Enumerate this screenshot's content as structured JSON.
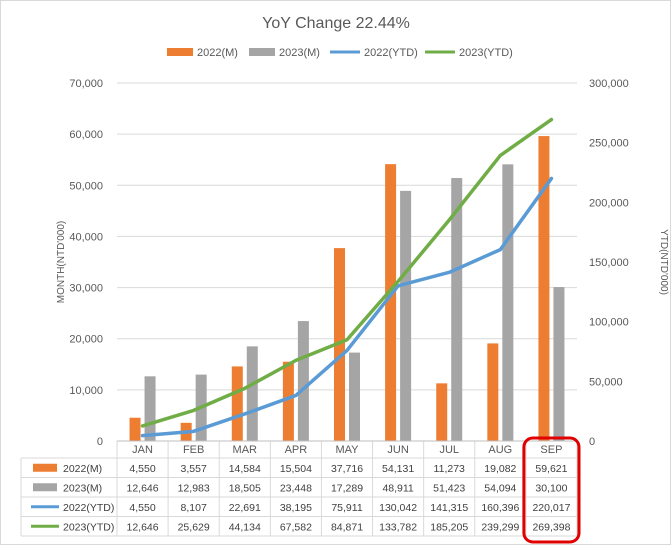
{
  "chart_data": {
    "type": "bar",
    "title": "YoY Change 22.44%",
    "categories": [
      "JAN",
      "FEB",
      "MAR",
      "APR",
      "MAY",
      "JUN",
      "JUL",
      "AUG",
      "SEP"
    ],
    "ylabel": "MONTH(NTD'000)",
    "y2label": "YTD(NTD'000)",
    "ylim": [
      0,
      70000
    ],
    "y2lim": [
      0,
      300000
    ],
    "yticks": [
      "0",
      "10,000",
      "20,000",
      "30,000",
      "40,000",
      "50,000",
      "60,000",
      "70,000"
    ],
    "y2ticks": [
      "0",
      "50,000",
      "100,000",
      "150,000",
      "200,000",
      "250,000",
      "300,000"
    ],
    "legend_position": "top",
    "grid": true,
    "series": [
      {
        "name": "2022(M)",
        "type": "bar",
        "axis": "left",
        "color": "#ED7D31",
        "values": [
          4550,
          3557,
          14584,
          15504,
          37716,
          54131,
          11273,
          19082,
          59621
        ],
        "labels": [
          "4,550",
          "3,557",
          "14,584",
          "15,504",
          "37,716",
          "54,131",
          "11,273",
          "19,082",
          "59,621"
        ]
      },
      {
        "name": "2023(M)",
        "type": "bar",
        "axis": "left",
        "color": "#A5A5A5",
        "values": [
          12646,
          12983,
          18505,
          23448,
          17289,
          48911,
          51423,
          54094,
          30100
        ],
        "labels": [
          "12,646",
          "12,983",
          "18,505",
          "23,448",
          "17,289",
          "48,911",
          "51,423",
          "54,094",
          "30,100"
        ]
      },
      {
        "name": "2022(YTD)",
        "type": "line",
        "axis": "right",
        "color": "#5B9BD5",
        "values": [
          4550,
          8107,
          22691,
          38195,
          75911,
          130042,
          141315,
          160396,
          220017
        ],
        "labels": [
          "4,550",
          "8,107",
          "22,691",
          "38,195",
          "75,911",
          "130,042",
          "141,315",
          "160,396",
          "220,017"
        ]
      },
      {
        "name": "2023(YTD)",
        "type": "line",
        "axis": "right",
        "color": "#70AD47",
        "values": [
          12646,
          25629,
          44134,
          67582,
          84871,
          133782,
          185205,
          239299,
          269398
        ],
        "labels": [
          "12,646",
          "25,629",
          "44,134",
          "67,582",
          "84,871",
          "133,782",
          "185,205",
          "239,299",
          "269,398"
        ]
      }
    ],
    "highlight": {
      "category": "SEP",
      "color": "#E00000"
    }
  }
}
